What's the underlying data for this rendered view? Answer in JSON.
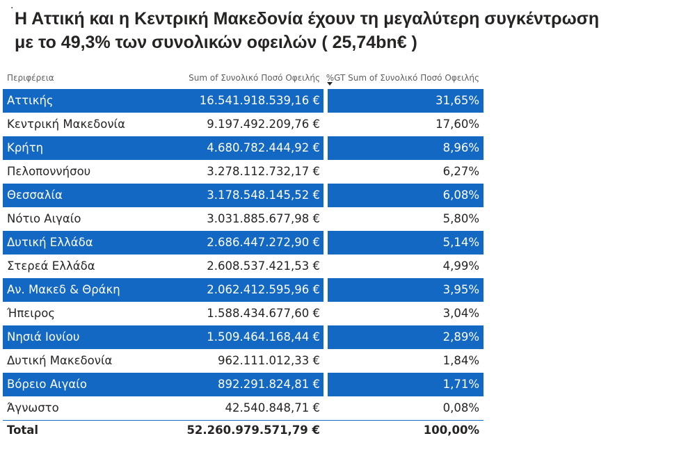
{
  "title": {
    "line1": "Η Αττική και η Κεντρική Μακεδονία  έχουν τη μεγαλύτερη συγκέντρωση",
    "line2": "με το 49,3% των συνολικών οφειλών ( 25,74bn€ )"
  },
  "table": {
    "headers": [
      "Περιφέρεια",
      "Sum of Συνολικό Ποσό Οφειλής",
      "%GT Sum of Συνολικό Ποσό Οφειλής"
    ],
    "sorted_column": "%GT Sum of Συνολικό Ποσό Οφειλής",
    "band_color": "#1368c4",
    "total": {
      "label": "Total",
      "amount": "52.260.979.571,79 €",
      "percent": "100,00%"
    }
  },
  "chart_data": {
    "type": "table",
    "title": "Η Αττική και η Κεντρική Μακεδονία  έχουν τη μεγαλύτερη συγκέντρωση με το 49,3% των συνολικών οφειλών ( 25,74bn€ )",
    "columns": [
      "Περιφέρεια",
      "Sum of Συνολικό Ποσό Οφειλής",
      "%GT Sum of Συνολικό Ποσό Οφειλής"
    ],
    "rows": [
      [
        "Αττικής",
        "16.541.918.539,16 €",
        "31,65%"
      ],
      [
        "Κεντρική Μακεδονία",
        "9.197.492.209,76 €",
        "17,60%"
      ],
      [
        "Κρήτη",
        "4.680.782.444,92 €",
        "8,96%"
      ],
      [
        "Πελοποννήσου",
        "3.278.112.732,17 €",
        "6,27%"
      ],
      [
        "Θεσσαλία",
        "3.178.548.145,52 €",
        "6,08%"
      ],
      [
        "Νότιο Αιγαίο",
        "3.031.885.677,98 €",
        "5,80%"
      ],
      [
        "Δυτική Ελλάδα",
        "2.686.447.272,90 €",
        "5,14%"
      ],
      [
        "Στερεά Ελλάδα",
        "2.608.537.421,53 €",
        "4,99%"
      ],
      [
        "Αν. Μακεδ & Θράκη",
        "2.062.412.595,96 €",
        "3,95%"
      ],
      [
        "Ήπειρος",
        "1.588.434.677,60 €",
        "3,04%"
      ],
      [
        "Νησιά Ιονίου",
        "1.509.464.168,44 €",
        "2,89%"
      ],
      [
        "Δυτική Μακεδονία",
        "962.111.012,33 €",
        "1,84%"
      ],
      [
        "Βόρειο Αιγαίο",
        "892.291.824,81 €",
        "1,71%"
      ],
      [
        "Άγνωστο",
        "42.540.848,71 €",
        "0,08%"
      ]
    ],
    "total": [
      "Total",
      "52.260.979.571,79 €",
      "100,00%"
    ]
  }
}
